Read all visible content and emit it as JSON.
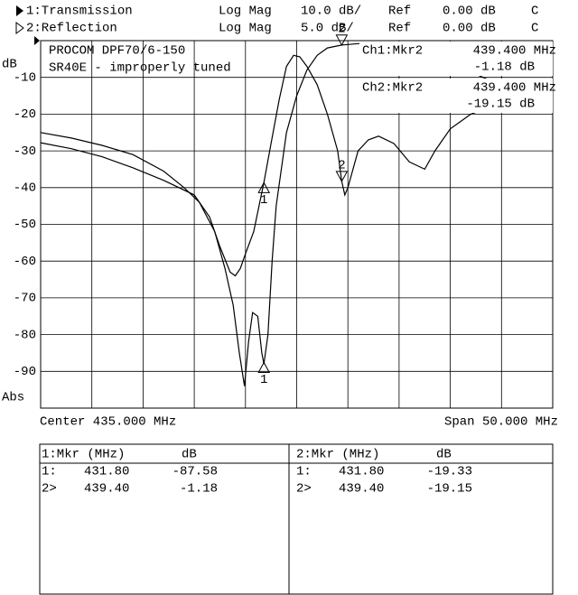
{
  "chart_data": {
    "type": "line",
    "title": "PROCOM DPF70/6-150",
    "subtitle": "SR40E - improperly tuned",
    "y_label": "dB",
    "y_format_label": "Abs",
    "footer_left": "Center 435.000 MHz",
    "footer_right": "Span 50.000 MHz",
    "xlim": [
      410,
      460
    ],
    "ylim": [
      -100,
      0
    ],
    "yticks": [
      -10,
      -20,
      -30,
      -40,
      -50,
      -60,
      -70,
      -80,
      -90
    ],
    "y2lim": [
      -50,
      0
    ],
    "grid": true,
    "series": [
      {
        "name": "1:Transmission",
        "format": "Log Mag",
        "scale": "10.0 dB/",
        "ref_label": "Ref",
        "ref": "0.00 dB",
        "coupling": "C",
        "color": "#000000",
        "x": [
          410,
          413,
          416,
          419,
          422,
          424,
          425.5,
          427,
          428,
          428.8,
          429.4,
          429.9,
          430.3,
          430.7,
          431.2,
          431.6,
          431.8,
          432.2,
          432.6,
          433,
          433.5,
          434,
          435,
          436,
          437,
          438,
          439.4,
          441,
          443,
          446,
          448,
          450,
          452,
          454,
          456,
          458,
          460
        ],
        "values": [
          -25,
          -26.5,
          -28.5,
          -31,
          -35.5,
          -40,
          -44,
          -52,
          -62,
          -72,
          -85,
          -94,
          -82,
          -74,
          -75,
          -85,
          -88,
          -80,
          -60,
          -45,
          -35,
          -25,
          -15,
          -8,
          -4,
          -2,
          -1.2,
          -0.8,
          -0.8,
          -1.5,
          -3,
          -6,
          -8.5,
          -11,
          -13.5,
          -15.5,
          -17
        ],
        "markers": {
          "labels": [
            "1",
            "2"
          ],
          "x": [
            431.8,
            439.4
          ],
          "values": [
            -87.58,
            -1.18
          ]
        }
      },
      {
        "name": "2:Reflection",
        "format": "Log Mag",
        "scale": "5.0 dB/",
        "ref_label": "Ref",
        "ref": "0.00 dB",
        "coupling": "C",
        "color": "#000000",
        "axis": "y2",
        "x": [
          410,
          413,
          416,
          419,
          422,
          425,
          426.5,
          427.5,
          428.5,
          429,
          429.5,
          430,
          430.8,
          431.8,
          432.5,
          433.3,
          434,
          434.7,
          435.3,
          436,
          437,
          438,
          439,
          439.4,
          439.7,
          440,
          441,
          442,
          443,
          444.5,
          446,
          447.5,
          448.5,
          450,
          452,
          454,
          456,
          458,
          460
        ],
        "values": [
          -13.9,
          -14.7,
          -15.8,
          -17.3,
          -19,
          -21,
          -24,
          -28,
          -31.5,
          -32,
          -31,
          -29,
          -26,
          -19.3,
          -14,
          -8,
          -3.5,
          -2,
          -2.2,
          -3.5,
          -6,
          -10,
          -15,
          -19.15,
          -21,
          -20,
          -15,
          -13.5,
          -13,
          -14,
          -16.5,
          -17.5,
          -15,
          -12,
          -10,
          -9,
          -8.5,
          -8.5,
          -8.6
        ],
        "markers": {
          "labels": [
            "1",
            "2"
          ],
          "x": [
            431.8,
            439.4
          ],
          "values": [
            -19.33,
            -19.15
          ]
        }
      }
    ],
    "readouts": [
      {
        "label": "Ch1:Mkr2",
        "freq": "439.400 MHz",
        "value": "-1.18 dB"
      },
      {
        "label": "Ch2:Mkr2",
        "freq": "439.400 MHz",
        "value": "-19.15 dB"
      }
    ]
  },
  "marker_table": {
    "panels": [
      {
        "header": [
          "1:Mkr (MHz)",
          "dB"
        ],
        "rows": [
          [
            "1:",
            "431.80",
            "-87.58"
          ],
          [
            "2>",
            "439.40",
            "-1.18"
          ]
        ]
      },
      {
        "header": [
          "2:Mkr (MHz)",
          "dB"
        ],
        "rows": [
          [
            "1:",
            "431.80",
            "-19.33"
          ],
          [
            "2>",
            "439.40",
            "-19.15"
          ]
        ]
      }
    ]
  }
}
